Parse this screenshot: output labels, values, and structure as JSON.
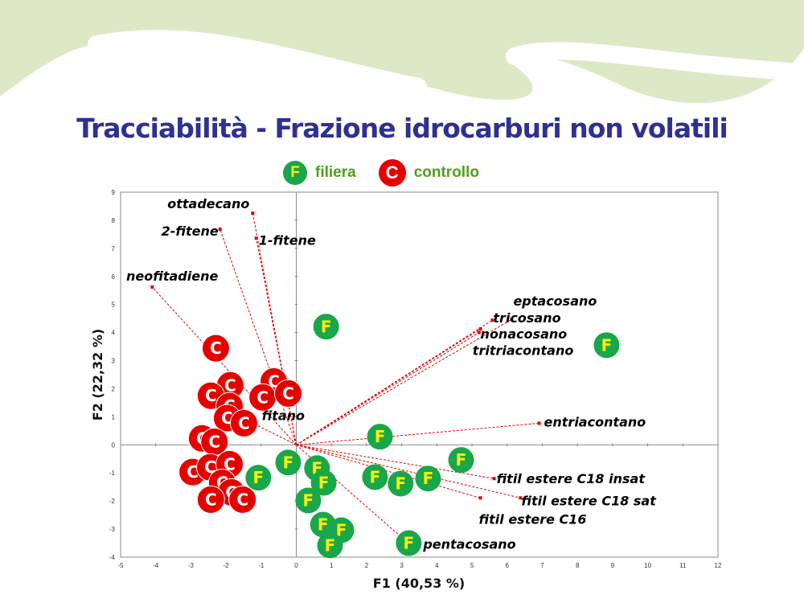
{
  "title": "Tracciabilità - Frazione idrocarburi non volatili",
  "legend": [
    {
      "symbol": "F",
      "label": "filiera",
      "color": "#1aa64a",
      "text_color": "#fff200"
    },
    {
      "symbol": "C",
      "label": "controllo",
      "color": "#e60000",
      "text_color": "#ffffff"
    }
  ],
  "colors": {
    "title": "#2e3192",
    "legend_text": "#4ea01c",
    "vector": "#e00000",
    "header_wave": "#dde8c6"
  },
  "chart_data": {
    "type": "scatter",
    "subtype": "biplot",
    "xlabel": "F1 (40,53 %)",
    "ylabel": "F2 (22,32 %)",
    "xlim": [
      -5,
      12
    ],
    "ylim": [
      -4,
      9
    ],
    "xticks": [
      -5,
      -4,
      -3,
      -2,
      -1,
      0,
      1,
      2,
      3,
      4,
      5,
      6,
      7,
      8,
      9,
      10,
      11,
      12
    ],
    "yticks": [
      -4,
      -3,
      -2,
      -1,
      0,
      1,
      2,
      3,
      4,
      5,
      6,
      7,
      8,
      9
    ],
    "grid": false,
    "legend_position": "top-center",
    "series": [
      {
        "name": "controllo",
        "symbol": "C",
        "points": [
          [
            -2.29,
            3.44
          ],
          [
            -1.88,
            2.12
          ],
          [
            -2.43,
            1.75
          ],
          [
            -1.9,
            1.38
          ],
          [
            -1.97,
            0.95
          ],
          [
            -1.49,
            0.77
          ],
          [
            -0.64,
            2.26
          ],
          [
            -0.96,
            1.69
          ],
          [
            -0.23,
            1.83
          ],
          [
            -2.68,
            0.23
          ],
          [
            -2.33,
            0.11
          ],
          [
            -2.95,
            -0.97
          ],
          [
            -2.45,
            -0.8
          ],
          [
            -1.9,
            -0.69
          ],
          [
            -2.11,
            -1.35
          ],
          [
            -1.85,
            -1.69
          ],
          [
            -2.43,
            -1.95
          ],
          [
            -1.53,
            -1.95
          ]
        ]
      },
      {
        "name": "filiera",
        "symbol": "F",
        "points": [
          [
            0.85,
            4.21
          ],
          [
            8.83,
            3.55
          ],
          [
            2.38,
            0.29
          ],
          [
            4.69,
            -0.54
          ],
          [
            -0.23,
            -0.63
          ],
          [
            -1.08,
            -1.17
          ],
          [
            0.59,
            -0.83
          ],
          [
            0.78,
            -1.35
          ],
          [
            2.24,
            -1.15
          ],
          [
            2.97,
            -1.38
          ],
          [
            3.75,
            -1.2
          ],
          [
            0.34,
            -1.98
          ],
          [
            0.76,
            -2.84
          ],
          [
            1.28,
            -3.04
          ],
          [
            0.96,
            -3.58
          ],
          [
            3.2,
            -3.5
          ]
        ]
      }
    ],
    "variables": [
      {
        "name": "ottadecano",
        "x": -1.24,
        "y": 8.25
      },
      {
        "name": "2-fitene",
        "x": -2.17,
        "y": 7.68
      },
      {
        "name": "1-fitene",
        "x": -1.14,
        "y": 7.36
      },
      {
        "name": "neofitadiene",
        "x": -4.1,
        "y": 5.62
      },
      {
        "name": "eptacosano",
        "x": 6.13,
        "y": 4.47
      },
      {
        "name": "tricosano",
        "x": 5.58,
        "y": 4.44
      },
      {
        "name": "nonacosano",
        "x": 5.24,
        "y": 4.13
      },
      {
        "name": "tritriacontano",
        "x": 5.2,
        "y": 4.0
      },
      {
        "name": "entriacontano",
        "x": 6.91,
        "y": 0.77
      },
      {
        "name": "fitano",
        "x": -1.6,
        "y": 1.0
      },
      {
        "name": "fitil estere C18 insat",
        "x": 5.63,
        "y": -1.2
      },
      {
        "name": "fitil estere C18 sat",
        "x": 6.38,
        "y": -1.89
      },
      {
        "name": "fitil estere C16",
        "x": 5.24,
        "y": -1.89
      },
      {
        "name": "pentacosano",
        "x": 3.13,
        "y": -3.44
      }
    ]
  }
}
